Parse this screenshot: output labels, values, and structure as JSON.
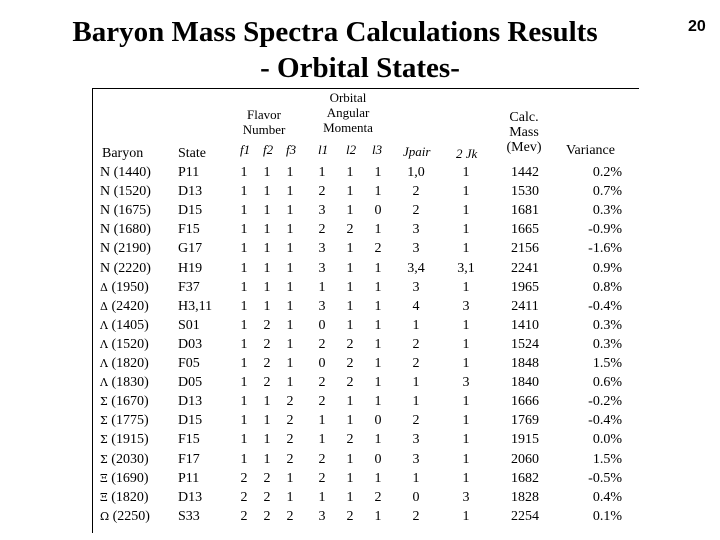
{
  "title_line1": "Baryon Mass Spectra Calculations Results",
  "title_line2": "- Orbital States-",
  "page_number": "20",
  "headers": {
    "baryon": "Baryon",
    "state": "State",
    "flavor": "Flavor Number",
    "f1": "f1",
    "f2": "f2",
    "f3": "f3",
    "orbital": "Orbital Angular Momenta",
    "l1": "l1",
    "l2": "l2",
    "l3": "l3",
    "jpair": "Jpair",
    "jk": "2 Jk",
    "calc": "Calc. Mass (Mev)",
    "variance": "Variance"
  },
  "rows": [
    {
      "sym": "N",
      "mass": "(1440)",
      "state": "P11",
      "f1": "1",
      "f2": "1",
      "f3": "1",
      "l1": "1",
      "l2": "1",
      "l3": "1",
      "jpair": "1,0",
      "jk": "1",
      "calc": "1442",
      "var": "0.2%"
    },
    {
      "sym": "N",
      "mass": "(1520)",
      "state": "D13",
      "f1": "1",
      "f2": "1",
      "f3": "1",
      "l1": "2",
      "l2": "1",
      "l3": "1",
      "jpair": "2",
      "jk": "1",
      "calc": "1530",
      "var": "0.7%"
    },
    {
      "sym": "N",
      "mass": "(1675)",
      "state": "D15",
      "f1": "1",
      "f2": "1",
      "f3": "1",
      "l1": "3",
      "l2": "1",
      "l3": "0",
      "jpair": "2",
      "jk": "1",
      "calc": "1681",
      "var": "0.3%"
    },
    {
      "sym": "N",
      "mass": "(1680)",
      "state": "F15",
      "f1": "1",
      "f2": "1",
      "f3": "1",
      "l1": "2",
      "l2": "2",
      "l3": "1",
      "jpair": "3",
      "jk": "1",
      "calc": "1665",
      "var": "-0.9%"
    },
    {
      "sym": "N",
      "mass": "(2190)",
      "state": "G17",
      "f1": "1",
      "f2": "1",
      "f3": "1",
      "l1": "3",
      "l2": "1",
      "l3": "2",
      "jpair": "3",
      "jk": "1",
      "calc": "2156",
      "var": "-1.6%"
    },
    {
      "sym": "N",
      "mass": "(2220)",
      "state": "H19",
      "f1": "1",
      "f2": "1",
      "f3": "1",
      "l1": "3",
      "l2": "1",
      "l3": "1",
      "jpair": "3,4",
      "jk": "3,1",
      "calc": "2241",
      "var": "0.9%"
    },
    {
      "sym": "Δ",
      "mass": "(1950)",
      "state": "F37",
      "f1": "1",
      "f2": "1",
      "f3": "1",
      "l1": "1",
      "l2": "1",
      "l3": "1",
      "jpair": "3",
      "jk": "1",
      "calc": "1965",
      "var": "0.8%"
    },
    {
      "sym": "Δ",
      "mass": "(2420)",
      "state": "H3,11",
      "f1": "1",
      "f2": "1",
      "f3": "1",
      "l1": "3",
      "l2": "1",
      "l3": "1",
      "jpair": "4",
      "jk": "3",
      "calc": "2411",
      "var": "-0.4%"
    },
    {
      "sym": "Λ",
      "mass": "(1405)",
      "state": "S01",
      "f1": "1",
      "f2": "2",
      "f3": "1",
      "l1": "0",
      "l2": "1",
      "l3": "1",
      "jpair": "1",
      "jk": "1",
      "calc": "1410",
      "var": "0.3%"
    },
    {
      "sym": "Λ",
      "mass": "(1520)",
      "state": "D03",
      "f1": "1",
      "f2": "2",
      "f3": "1",
      "l1": "2",
      "l2": "2",
      "l3": "1",
      "jpair": "2",
      "jk": "1",
      "calc": "1524",
      "var": "0.3%"
    },
    {
      "sym": "Λ",
      "mass": "(1820)",
      "state": "F05",
      "f1": "1",
      "f2": "2",
      "f3": "1",
      "l1": "0",
      "l2": "2",
      "l3": "1",
      "jpair": "2",
      "jk": "1",
      "calc": "1848",
      "var": "1.5%"
    },
    {
      "sym": "Λ",
      "mass": "(1830)",
      "state": "D05",
      "f1": "1",
      "f2": "2",
      "f3": "1",
      "l1": "2",
      "l2": "2",
      "l3": "1",
      "jpair": "1",
      "jk": "3",
      "calc": "1840",
      "var": "0.6%"
    },
    {
      "sym": "Σ",
      "mass": "(1670)",
      "state": "D13",
      "f1": "1",
      "f2": "1",
      "f3": "2",
      "l1": "2",
      "l2": "1",
      "l3": "1",
      "jpair": "1",
      "jk": "1",
      "calc": "1666",
      "var": "-0.2%"
    },
    {
      "sym": "Σ",
      "mass": "(1775)",
      "state": "D15",
      "f1": "1",
      "f2": "1",
      "f3": "2",
      "l1": "1",
      "l2": "1",
      "l3": "0",
      "jpair": "2",
      "jk": "1",
      "calc": "1769",
      "var": "-0.4%"
    },
    {
      "sym": "Σ",
      "mass": "(1915)",
      "state": "F15",
      "f1": "1",
      "f2": "1",
      "f3": "2",
      "l1": "1",
      "l2": "2",
      "l3": "1",
      "jpair": "3",
      "jk": "1",
      "calc": "1915",
      "var": "0.0%"
    },
    {
      "sym": "Σ",
      "mass": "(2030)",
      "state": "F17",
      "f1": "1",
      "f2": "1",
      "f3": "2",
      "l1": "2",
      "l2": "1",
      "l3": "0",
      "jpair": "3",
      "jk": "1",
      "calc": "2060",
      "var": "1.5%"
    },
    {
      "sym": "Ξ",
      "mass": "(1690)",
      "state": "P11",
      "f1": "2",
      "f2": "2",
      "f3": "1",
      "l1": "2",
      "l2": "1",
      "l3": "1",
      "jpair": "1",
      "jk": "1",
      "calc": "1682",
      "var": "-0.5%"
    },
    {
      "sym": "Ξ",
      "mass": "(1820)",
      "state": "D13",
      "f1": "2",
      "f2": "2",
      "f3": "1",
      "l1": "1",
      "l2": "1",
      "l3": "2",
      "jpair": "0",
      "jk": "3",
      "calc": "1828",
      "var": "0.4%"
    },
    {
      "sym": "Ω",
      "mass": "(2250)",
      "state": "S33",
      "f1": "2",
      "f2": "2",
      "f3": "2",
      "l1": "3",
      "l2": "2",
      "l3": "1",
      "jpair": "2",
      "jk": "1",
      "calc": "2254",
      "var": "0.1%"
    }
  ]
}
